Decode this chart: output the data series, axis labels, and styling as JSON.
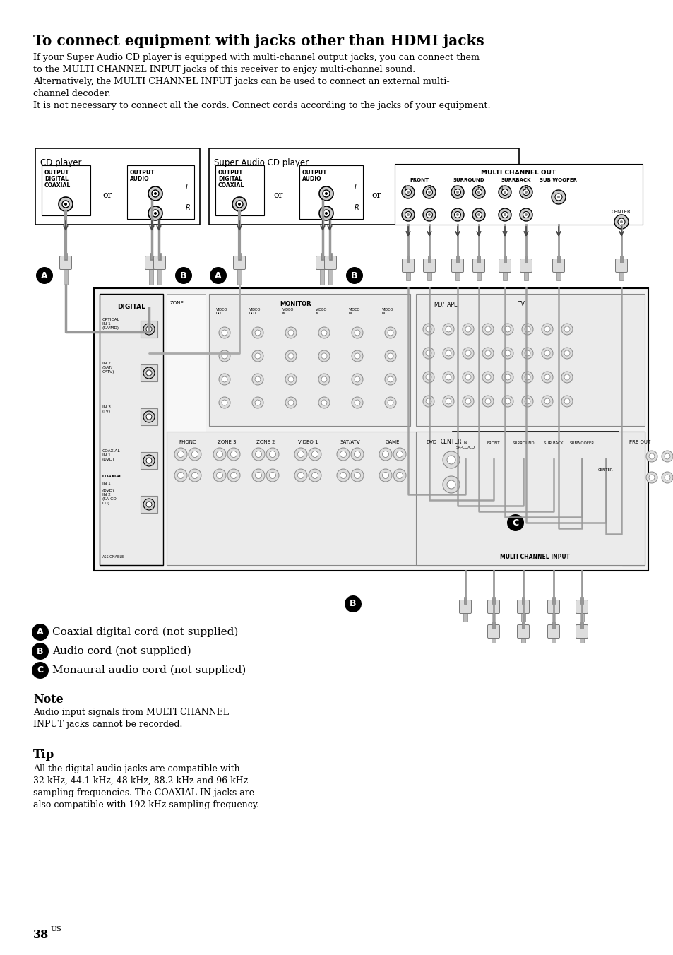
{
  "title": "To connect equipment with jacks other than HDMI jacks",
  "intro_lines": [
    "If your Super Audio CD player is equipped with multi-channel output jacks, you can connect them",
    "to the MULTI CHANNEL INPUT jacks of this receiver to enjoy multi-channel sound.",
    "Alternatively, the MULTI CHANNEL INPUT jacks can be used to connect an external multi-",
    "channel decoder.",
    "It is not necessary to connect all the cords. Connect cords according to the jacks of your equipment."
  ],
  "legend_items": [
    {
      "label": "A",
      "text": "Coaxial digital cord (not supplied)"
    },
    {
      "label": "B",
      "text": "Audio cord (not supplied)"
    },
    {
      "label": "C",
      "text": "Monaural audio cord (not supplied)"
    }
  ],
  "note_title": "Note",
  "note_text": "Audio input signals from MULTI CHANNEL\nINPUT jacks cannot be recorded.",
  "tip_title": "Tip",
  "tip_text": "All the digital audio jacks are compatible with\n32 kHz, 44.1 kHz, 48 kHz, 88.2 kHz and 96 kHz\nsampling frequencies. The COAXIAL IN jacks are\nalso compatible with 192 kHz sampling frequency.",
  "page_number": "38",
  "bg_color": "#ffffff"
}
